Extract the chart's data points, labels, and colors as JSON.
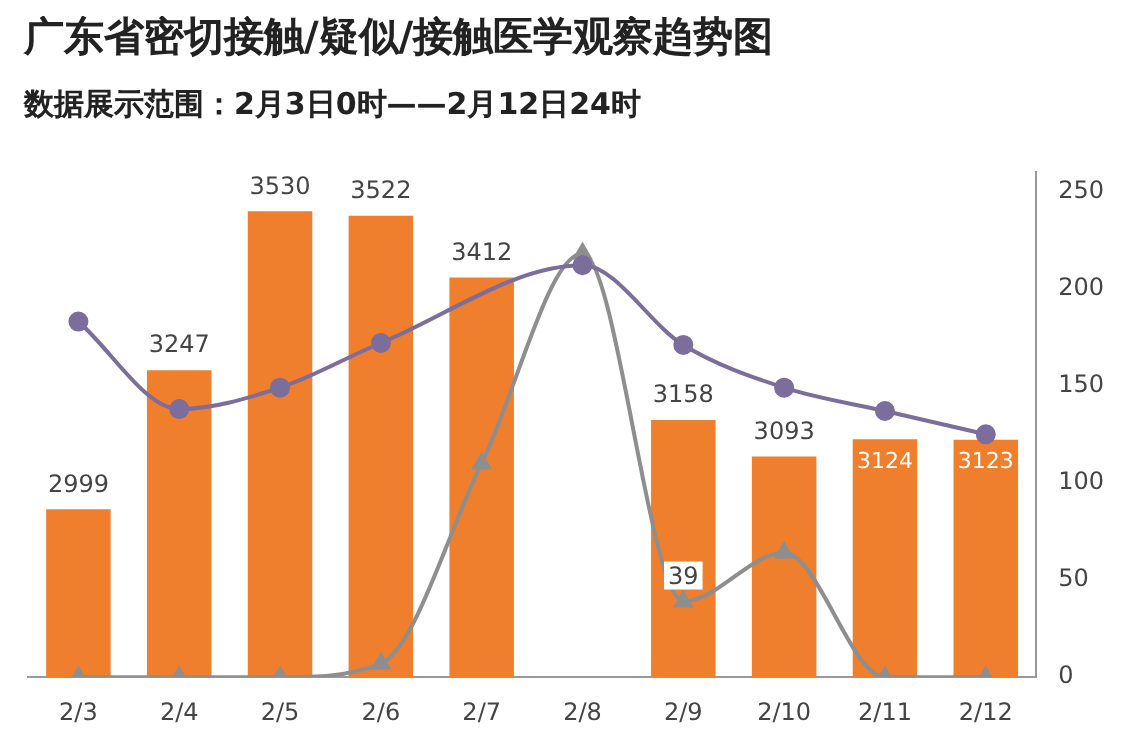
{
  "chart_data": {
    "type": "bar",
    "title": "广东省密切接触/疑似/接触医学观察趋势图",
    "subtitle": "数据展示范围：2月3日0时——2月12日24时",
    "categories": [
      "2/3",
      "2/4",
      "2/5",
      "2/6",
      "2/7",
      "2/8",
      "2/9",
      "2/10",
      "2/11",
      "2/12"
    ],
    "series": [
      {
        "color": "#f07f2d",
        "values": [
          2999,
          3247,
          3530,
          3522,
          3412,
          null,
          3158,
          3093,
          3124,
          3123
        ],
        "value_labels": [
          "2999",
          "3247",
          "3530",
          "3522",
          "3412",
          null,
          "3158",
          "3093",
          "3124",
          "3123"
        ]
      },
      {
        "type": "line",
        "axis": "y2",
        "color": "#7b6d9c",
        "marker": "circle",
        "values": [
          183,
          138,
          149,
          172,
          null,
          212,
          171,
          149,
          137,
          125
        ]
      },
      {
        "type": "line",
        "axis": "y2",
        "color": "#8e8e8e",
        "marker": "triangle",
        "values": [
          0,
          0,
          0,
          7,
          110,
          218,
          39,
          64,
          0,
          0
        ],
        "value_labels": [
          null,
          null,
          null,
          null,
          null,
          null,
          "39",
          null,
          null,
          null
        ]
      }
    ],
    "ylim": [
      2700,
      3600
    ],
    "y2lim": [
      0,
      260
    ],
    "y2ticks": [
      0,
      50,
      100,
      150,
      200,
      250
    ]
  }
}
